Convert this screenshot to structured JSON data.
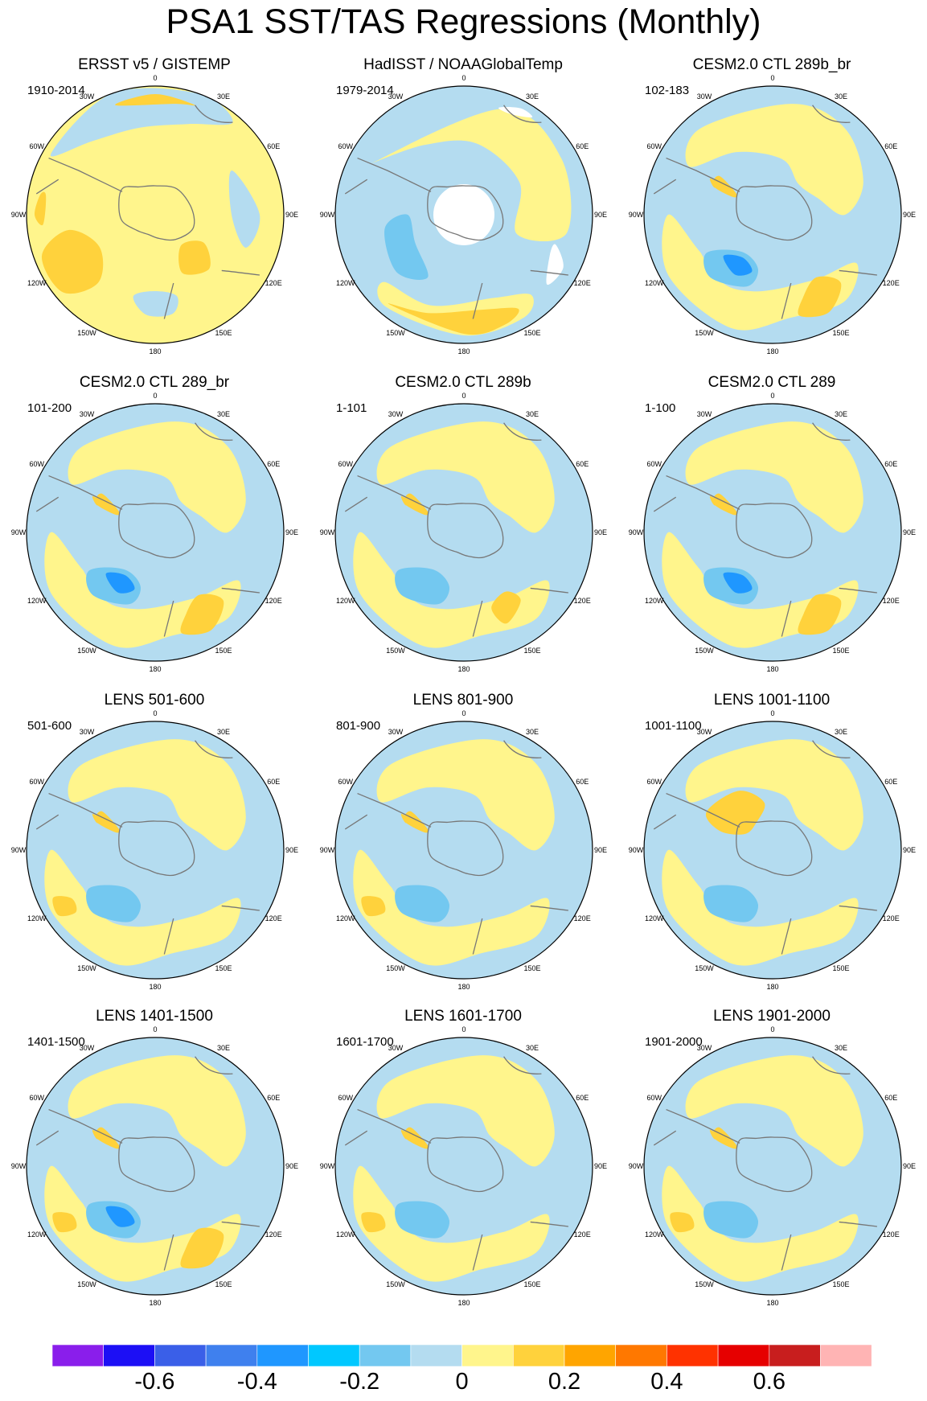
{
  "title": "PSA1 SST/TAS Regressions (Monthly)",
  "panels": [
    {
      "title": "ERSST v5 / GISTEMP",
      "period": "1910-2014",
      "pattern": "obs1"
    },
    {
      "title": "HadISST / NOAAGlobalTemp",
      "period": "1979-2014",
      "pattern": "obs2"
    },
    {
      "title": "CESM2.0 CTL 289b_br",
      "period": "102-183",
      "pattern": "model_strong"
    },
    {
      "title": "CESM2.0 CTL 289_br",
      "period": "101-200",
      "pattern": "model_strong"
    },
    {
      "title": "CESM2.0 CTL 289b",
      "period": "1-101",
      "pattern": "model"
    },
    {
      "title": "CESM2.0 CTL 289",
      "period": "1-100",
      "pattern": "model_strong"
    },
    {
      "title": "LENS 501-600",
      "period": "501-600",
      "pattern": "lens"
    },
    {
      "title": "LENS 801-900",
      "period": "801-900",
      "pattern": "lens"
    },
    {
      "title": "LENS 1001-1100",
      "period": "1001-1100",
      "pattern": "lens_warm"
    },
    {
      "title": "LENS 1401-1500",
      "period": "1401-1500",
      "pattern": "lens_strong"
    },
    {
      "title": "LENS 1601-1700",
      "period": "1601-1700",
      "pattern": "lens"
    },
    {
      "title": "LENS 1901-2000",
      "period": "1901-2000",
      "pattern": "lens"
    }
  ],
  "longitude_labels": [
    "0",
    "30E",
    "60E",
    "90E",
    "120E",
    "150E",
    "180",
    "150W",
    "120W",
    "90W",
    "60W",
    "30W"
  ],
  "colorbar": {
    "colors": [
      "#8a1eeb",
      "#1c0ff5",
      "#3a5fe8",
      "#3f80ee",
      "#1f97ff",
      "#00c8ff",
      "#73c8f0",
      "#b4dcf0",
      "#fff58c",
      "#ffd23c",
      "#ffa500",
      "#ff7800",
      "#ff3200",
      "#e60000",
      "#c81e1e",
      "#ffb4b4"
    ],
    "tick_labels": [
      {
        "text": "-0.6",
        "boundary": 2
      },
      {
        "text": "-0.4",
        "boundary": 4
      },
      {
        "text": "-0.2",
        "boundary": 6
      },
      {
        "text": "0",
        "boundary": 8
      },
      {
        "text": "0.2",
        "boundary": 10
      },
      {
        "text": "0.4",
        "boundary": 12
      },
      {
        "text": "0.6",
        "boundary": 14
      }
    ]
  },
  "palette": {
    "neg2": "#73c8f0",
    "neg1": "#b4dcf0",
    "pos1": "#fff58c",
    "pos2": "#ffd23c",
    "neg3": "#1f97ff",
    "coast": "#777777",
    "missing": "#ffffff"
  }
}
